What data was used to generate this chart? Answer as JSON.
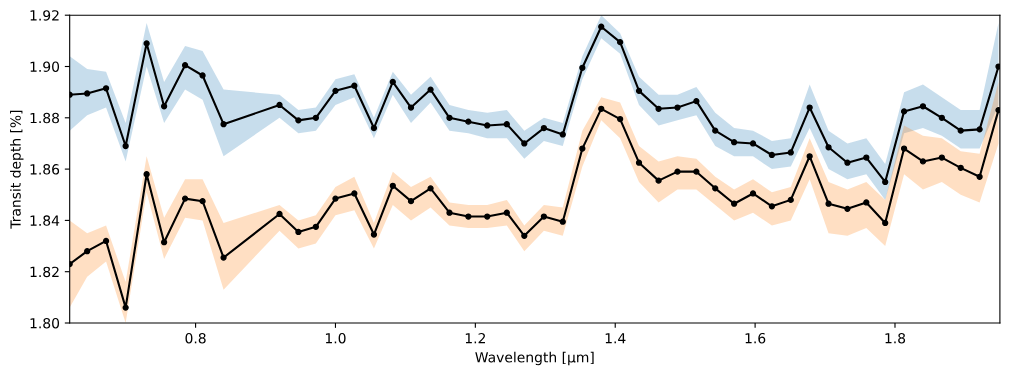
{
  "chart_data": {
    "type": "line",
    "xlabel": "Wavelength [μm]",
    "ylabel": "Transit depth [%]",
    "x": [
      0.62,
      0.645,
      0.672,
      0.7,
      0.73,
      0.755,
      0.785,
      0.81,
      0.84,
      0.92,
      0.947,
      0.972,
      1.0,
      1.027,
      1.055,
      1.082,
      1.108,
      1.136,
      1.163,
      1.19,
      1.217,
      1.245,
      1.27,
      1.298,
      1.325,
      1.353,
      1.38,
      1.407,
      1.434,
      1.462,
      1.489,
      1.516,
      1.543,
      1.57,
      1.597,
      1.624,
      1.651,
      1.678,
      1.705,
      1.732,
      1.759,
      1.786,
      1.813,
      1.84,
      1.867,
      1.894,
      1.921,
      1.948
    ],
    "xlim": [
      0.62,
      1.95
    ],
    "xticks": [
      0.8,
      {
        "value": 1.0,
        "label": "1.0"
      },
      1.2,
      1.4,
      1.6,
      1.8
    ],
    "ylim": [
      1.8,
      1.92
    ],
    "yticks": [
      {
        "value": 1.8,
        "label": "1.80"
      },
      1.82,
      1.84,
      1.86,
      1.88,
      {
        "value": 1.9,
        "label": "1.90"
      },
      1.92
    ],
    "marker": "circle",
    "line_style": "solid",
    "grid": false,
    "series": [
      {
        "color": "#000000",
        "values": [
          1.889,
          1.8895,
          1.8915,
          1.869,
          1.909,
          1.8845,
          1.9005,
          1.8965,
          1.8775,
          1.885,
          1.879,
          1.88,
          1.8905,
          1.8925,
          1.876,
          1.894,
          1.884,
          1.891,
          1.88,
          1.8785,
          1.877,
          1.8775,
          1.87,
          1.876,
          1.8735,
          1.8995,
          1.9155,
          1.9095,
          1.8905,
          1.8835,
          1.884,
          1.8865,
          1.875,
          1.8705,
          1.87,
          1.8655,
          1.8665,
          1.884,
          1.8685,
          1.8625,
          1.8645,
          1.855,
          1.8825,
          1.8845,
          1.88,
          1.875,
          1.8755,
          1.9
        ],
        "upper": [
          1.904,
          1.899,
          1.898,
          1.878,
          1.917,
          1.894,
          1.908,
          1.906,
          1.891,
          1.889,
          1.883,
          1.884,
          1.895,
          1.897,
          1.88,
          1.898,
          1.889,
          1.896,
          1.885,
          1.883,
          1.882,
          1.883,
          1.875,
          1.88,
          1.878,
          1.904,
          1.92,
          1.913,
          1.896,
          1.889,
          1.889,
          1.892,
          1.882,
          1.876,
          1.875,
          1.871,
          1.872,
          1.893,
          1.875,
          1.87,
          1.872,
          1.862,
          1.89,
          1.893,
          1.888,
          1.883,
          1.883,
          1.917
        ],
        "lower": [
          1.875,
          1.881,
          1.884,
          1.863,
          1.9,
          1.878,
          1.891,
          1.887,
          1.865,
          1.88,
          1.874,
          1.875,
          1.885,
          1.888,
          1.872,
          1.889,
          1.878,
          1.886,
          1.875,
          1.874,
          1.872,
          1.872,
          1.864,
          1.871,
          1.869,
          1.895,
          1.911,
          1.905,
          1.885,
          1.877,
          1.879,
          1.881,
          1.869,
          1.865,
          1.865,
          1.86,
          1.861,
          1.876,
          1.86,
          1.856,
          1.858,
          1.848,
          1.874,
          1.876,
          1.873,
          1.868,
          1.868,
          1.885
        ]
      },
      {
        "color": "#000000",
        "values": [
          1.823,
          1.828,
          1.832,
          1.806,
          1.858,
          1.8315,
          1.8485,
          1.8475,
          1.8255,
          1.8425,
          1.8355,
          1.8375,
          1.8485,
          1.8505,
          1.8345,
          1.8535,
          1.8475,
          1.8525,
          1.843,
          1.8415,
          1.8415,
          1.843,
          1.834,
          1.8415,
          1.8395,
          1.868,
          1.8835,
          1.8795,
          1.8625,
          1.8555,
          1.859,
          1.859,
          1.8525,
          1.8465,
          1.8505,
          1.8455,
          1.848,
          1.865,
          1.8465,
          1.8445,
          1.847,
          1.839,
          1.868,
          1.863,
          1.8645,
          1.8605,
          1.857,
          1.883
        ],
        "upper": [
          1.84,
          1.835,
          1.838,
          1.816,
          1.865,
          1.841,
          1.856,
          1.856,
          1.839,
          1.846,
          1.84,
          1.842,
          1.853,
          1.857,
          1.839,
          1.859,
          1.853,
          1.857,
          1.847,
          1.846,
          1.846,
          1.848,
          1.838,
          1.846,
          1.845,
          1.875,
          1.888,
          1.886,
          1.869,
          1.863,
          1.865,
          1.864,
          1.857,
          1.852,
          1.856,
          1.851,
          1.853,
          1.872,
          1.855,
          1.852,
          1.855,
          1.848,
          1.877,
          1.873,
          1.872,
          1.867,
          1.866,
          1.894
        ],
        "lower": [
          1.806,
          1.818,
          1.824,
          1.8,
          1.851,
          1.825,
          1.841,
          1.84,
          1.813,
          1.836,
          1.829,
          1.831,
          1.842,
          1.844,
          1.829,
          1.846,
          1.84,
          1.845,
          1.838,
          1.837,
          1.837,
          1.838,
          1.828,
          1.836,
          1.834,
          1.861,
          1.879,
          1.872,
          1.855,
          1.847,
          1.852,
          1.852,
          1.846,
          1.84,
          1.843,
          1.838,
          1.84,
          1.856,
          1.835,
          1.834,
          1.837,
          1.83,
          1.858,
          1.852,
          1.855,
          1.85,
          1.847,
          1.87
        ]
      }
    ]
  }
}
